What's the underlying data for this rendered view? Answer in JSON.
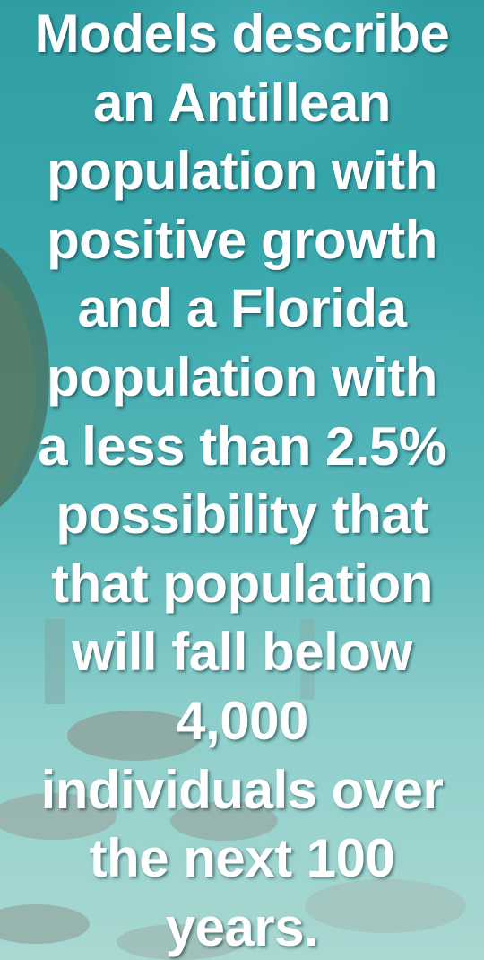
{
  "lines": [
    "Models describe",
    "an Antillean",
    "population with",
    "positive growth",
    "and a Florida",
    "population with",
    "a less than 2.5%",
    "possibility that",
    "that population",
    "will fall below",
    "4,000",
    "individuals over",
    "the next 100",
    "years."
  ]
}
